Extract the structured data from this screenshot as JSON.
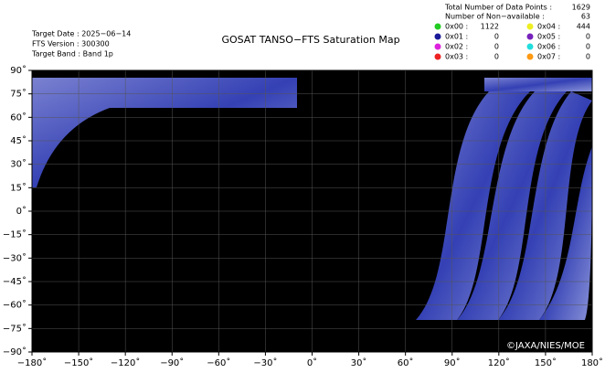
{
  "header": {
    "target_date": "Target Date : 2025−06−14",
    "fts_version": "FTS Version : 300300",
    "target_band": "Target Band : Band 1p",
    "title": "GOSAT TANSO−FTS Saturation Map"
  },
  "summary": {
    "total_label": "Total Number of Data Points :",
    "total": 1629,
    "non_available_label": "Number of Non−available :",
    "non_available": 63
  },
  "legend": [
    {
      "code": "0x00 :",
      "count": 1122,
      "color": "#22cc22"
    },
    {
      "code": "0x01 :",
      "count": 0,
      "color": "#1a1a99"
    },
    {
      "code": "0x02 :",
      "count": 0,
      "color": "#dd22dd"
    },
    {
      "code": "0x03 :",
      "count": 0,
      "color": "#ee2222"
    },
    {
      "code": "0x04 :",
      "count": 444,
      "color": "#eeee22"
    },
    {
      "code": "0x05 :",
      "count": 0,
      "color": "#7722bb"
    },
    {
      "code": "0x06 :",
      "count": 0,
      "color": "#22dddd"
    },
    {
      "code": "0x07 :",
      "count": 0,
      "color": "#ff9911"
    }
  ],
  "map": {
    "xlim": [
      -180,
      180
    ],
    "ylim": [
      -90,
      90
    ],
    "xticks": [
      {
        "value": -180,
        "label": "−180˚"
      },
      {
        "value": -150,
        "label": "−150˚"
      },
      {
        "value": -120,
        "label": "−120˚"
      },
      {
        "value": -90,
        "label": "−90˚"
      },
      {
        "value": -60,
        "label": "−60˚"
      },
      {
        "value": -30,
        "label": "−30˚"
      },
      {
        "value": 0,
        "label": "0˚"
      },
      {
        "value": 30,
        "label": "30˚"
      },
      {
        "value": 60,
        "label": "60˚"
      },
      {
        "value": 90,
        "label": "90˚"
      },
      {
        "value": 120,
        "label": "120˚"
      },
      {
        "value": 150,
        "label": "150˚"
      },
      {
        "value": 180,
        "label": "180˚"
      }
    ],
    "yticks": [
      {
        "value": 90,
        "label": "90˚"
      },
      {
        "value": 75,
        "label": "75˚"
      },
      {
        "value": 60,
        "label": "60˚"
      },
      {
        "value": 45,
        "label": "45˚"
      },
      {
        "value": 30,
        "label": "30˚"
      },
      {
        "value": 15,
        "label": "15˚"
      },
      {
        "value": 0,
        "label": "0˚"
      },
      {
        "value": -15,
        "label": "−15˚"
      },
      {
        "value": -30,
        "label": "−30˚"
      },
      {
        "value": -45,
        "label": "−45˚"
      },
      {
        "value": -60,
        "label": "−60˚"
      },
      {
        "value": -75,
        "label": "−75˚"
      },
      {
        "value": -90,
        "label": "−90˚"
      }
    ],
    "copyright": "©JAXA/NIES/MOE"
  }
}
